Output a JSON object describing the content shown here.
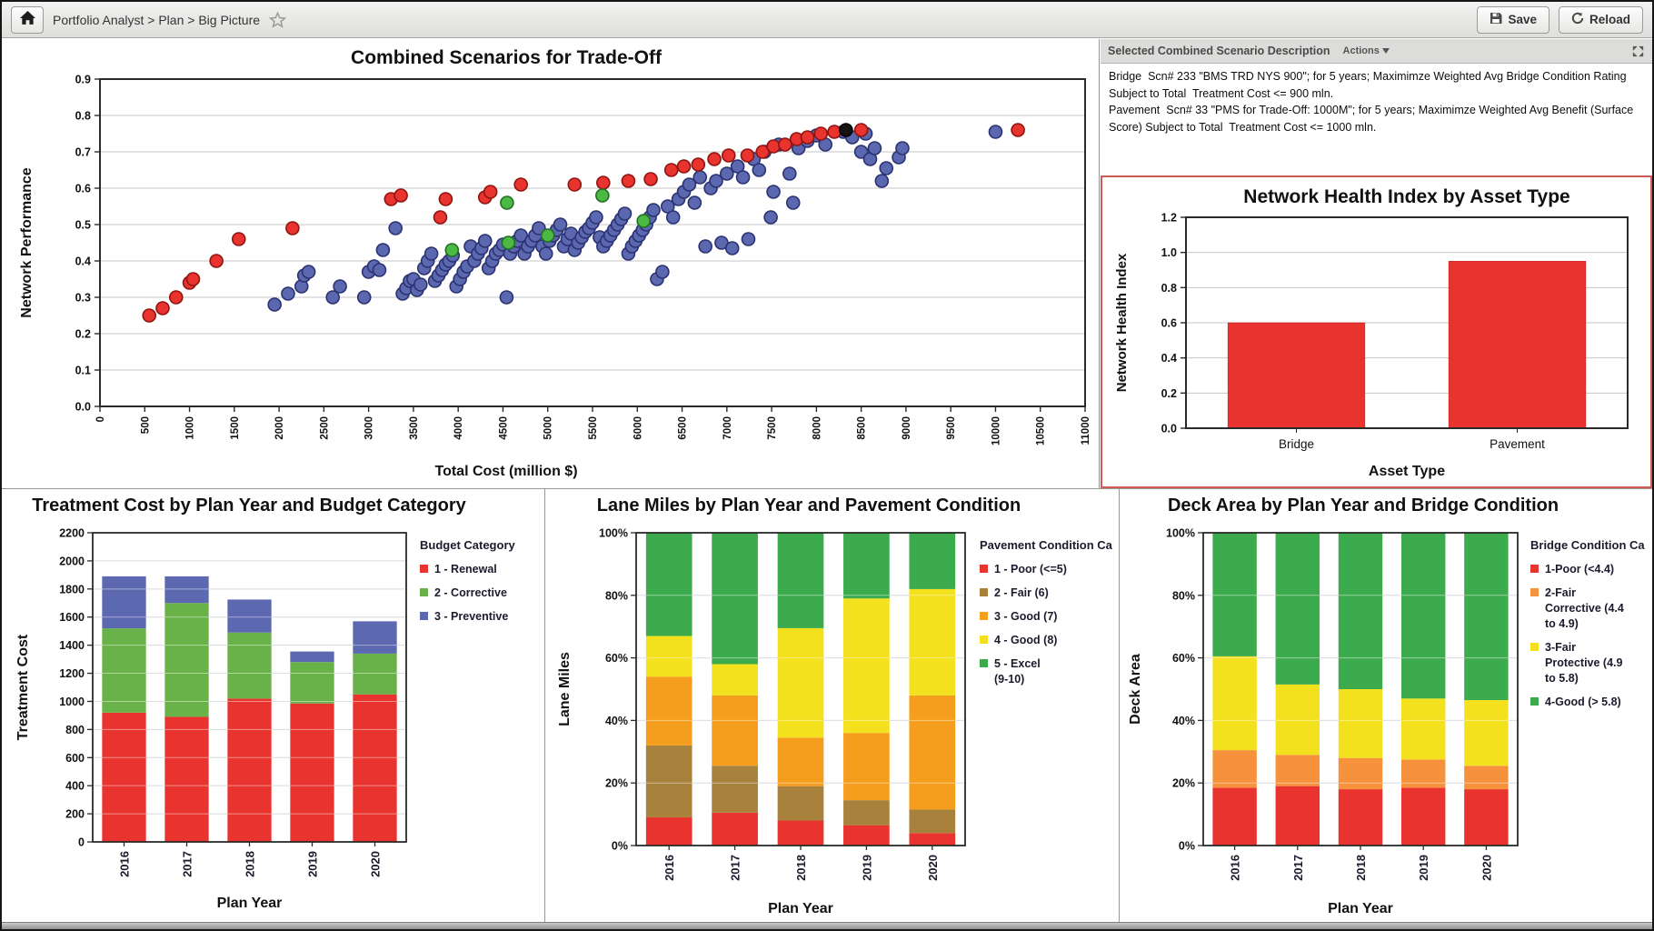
{
  "toolbar": {
    "breadcrumb": "Portfolio Analyst > Plan > Big Picture",
    "save_label": "Save",
    "reload_label": "Reload"
  },
  "description_panel": {
    "title": "Selected Combined Scenario Description",
    "actions_label": "Actions",
    "actions_caret": "▼",
    "lines": [
      "Bridge  Scn# 233 \"BMS TRD NYS 900\"; for 5 years; Maximimze Weighted Avg Bridge Condition Rating Subject to Total  Treatment Cost <= 900 mln.",
      "Pavement  Scn# 33 \"PMS for Trade-Off: 1000M\"; for 5 years; Maximimze Weighted Avg Benefit (Surface Score) Subject to Total  Treatment Cost <= 1000 mln."
    ]
  },
  "chart_data": [
    {
      "type": "scatter",
      "title": "Combined Scenarios for Trade-Off",
      "xlabel": "Total Cost (million $)",
      "ylabel": "Network Performance",
      "xlim": [
        0,
        11000
      ],
      "xstep": 500,
      "ylim": [
        0,
        0.9
      ],
      "ystep": 0.1,
      "grid": "horizontal",
      "series": [
        {
          "name": "combined-scenarios",
          "color": "#5b68b0",
          "stroke": "#2b3272",
          "points": [
            [
              1950,
              0.28
            ],
            [
              2100,
              0.31
            ],
            [
              2250,
              0.33
            ],
            [
              2280,
              0.36
            ],
            [
              2330,
              0.37
            ],
            [
              2600,
              0.3
            ],
            [
              2680,
              0.33
            ],
            [
              2950,
              0.3
            ],
            [
              3000,
              0.37
            ],
            [
              3060,
              0.385
            ],
            [
              3120,
              0.375
            ],
            [
              3160,
              0.43
            ],
            [
              3300,
              0.49
            ],
            [
              3380,
              0.31
            ],
            [
              3420,
              0.325
            ],
            [
              3460,
              0.345
            ],
            [
              3500,
              0.35
            ],
            [
              3540,
              0.32
            ],
            [
              3580,
              0.335
            ],
            [
              3620,
              0.38
            ],
            [
              3660,
              0.4
            ],
            [
              3700,
              0.42
            ],
            [
              3740,
              0.345
            ],
            [
              3780,
              0.36
            ],
            [
              3820,
              0.375
            ],
            [
              3860,
              0.39
            ],
            [
              3900,
              0.4
            ],
            [
              3940,
              0.415
            ],
            [
              3980,
              0.33
            ],
            [
              4020,
              0.35
            ],
            [
              4060,
              0.37
            ],
            [
              4100,
              0.385
            ],
            [
              4140,
              0.44
            ],
            [
              4180,
              0.4
            ],
            [
              4220,
              0.42
            ],
            [
              4260,
              0.435
            ],
            [
              4300,
              0.455
            ],
            [
              4340,
              0.38
            ],
            [
              4380,
              0.4
            ],
            [
              4420,
              0.42
            ],
            [
              4460,
              0.43
            ],
            [
              4500,
              0.445
            ],
            [
              4540,
              0.3
            ],
            [
              4580,
              0.42
            ],
            [
              4620,
              0.44
            ],
            [
              4660,
              0.455
            ],
            [
              4700,
              0.47
            ],
            [
              4740,
              0.42
            ],
            [
              4780,
              0.44
            ],
            [
              4820,
              0.455
            ],
            [
              4860,
              0.47
            ],
            [
              4900,
              0.49
            ],
            [
              4940,
              0.44
            ],
            [
              4980,
              0.42
            ],
            [
              5020,
              0.455
            ],
            [
              5060,
              0.47
            ],
            [
              5100,
              0.485
            ],
            [
              5140,
              0.5
            ],
            [
              5180,
              0.44
            ],
            [
              5220,
              0.46
            ],
            [
              5260,
              0.475
            ],
            [
              5300,
              0.43
            ],
            [
              5340,
              0.45
            ],
            [
              5380,
              0.465
            ],
            [
              5420,
              0.48
            ],
            [
              5460,
              0.49
            ],
            [
              5500,
              0.505
            ],
            [
              5540,
              0.52
            ],
            [
              5580,
              0.465
            ],
            [
              5620,
              0.44
            ],
            [
              5660,
              0.455
            ],
            [
              5700,
              0.47
            ],
            [
              5740,
              0.485
            ],
            [
              5780,
              0.5
            ],
            [
              5820,
              0.515
            ],
            [
              5860,
              0.53
            ],
            [
              5900,
              0.42
            ],
            [
              5940,
              0.44
            ],
            [
              5980,
              0.455
            ],
            [
              6020,
              0.47
            ],
            [
              6060,
              0.485
            ],
            [
              6100,
              0.5
            ],
            [
              6140,
              0.52
            ],
            [
              6180,
              0.54
            ],
            [
              6220,
              0.35
            ],
            [
              6280,
              0.37
            ],
            [
              6340,
              0.55
            ],
            [
              6400,
              0.52
            ],
            [
              6460,
              0.57
            ],
            [
              6520,
              0.59
            ],
            [
              6580,
              0.61
            ],
            [
              6640,
              0.56
            ],
            [
              6700,
              0.63
            ],
            [
              6760,
              0.44
            ],
            [
              6820,
              0.6
            ],
            [
              6880,
              0.62
            ],
            [
              6940,
              0.45
            ],
            [
              7000,
              0.64
            ],
            [
              7060,
              0.435
            ],
            [
              7120,
              0.66
            ],
            [
              7180,
              0.63
            ],
            [
              7240,
              0.46
            ],
            [
              7300,
              0.68
            ],
            [
              7360,
              0.65
            ],
            [
              7420,
              0.7
            ],
            [
              7490,
              0.52
            ],
            [
              7520,
              0.59
            ],
            [
              7580,
              0.72
            ],
            [
              7700,
              0.64
            ],
            [
              7740,
              0.56
            ],
            [
              7800,
              0.71
            ],
            [
              7900,
              0.73
            ],
            [
              8000,
              0.745
            ],
            [
              8100,
              0.72
            ],
            [
              8300,
              0.755
            ],
            [
              8400,
              0.74
            ],
            [
              8500,
              0.7
            ],
            [
              8550,
              0.75
            ],
            [
              8600,
              0.68
            ],
            [
              8650,
              0.71
            ],
            [
              8730,
              0.62
            ],
            [
              8780,
              0.655
            ],
            [
              8920,
              0.685
            ],
            [
              8960,
              0.71
            ],
            [
              10000,
              0.755
            ]
          ]
        },
        {
          "name": "pareto-frontier",
          "color": "#e8332e",
          "stroke": "#8f1510",
          "points": [
            [
              550,
              0.25
            ],
            [
              700,
              0.27
            ],
            [
              850,
              0.3
            ],
            [
              1000,
              0.34
            ],
            [
              1040,
              0.35
            ],
            [
              1300,
              0.4
            ],
            [
              1550,
              0.46
            ],
            [
              2150,
              0.49
            ],
            [
              3250,
              0.57
            ],
            [
              3360,
              0.58
            ],
            [
              3800,
              0.52
            ],
            [
              3860,
              0.57
            ],
            [
              4300,
              0.575
            ],
            [
              4360,
              0.59
            ],
            [
              4700,
              0.61
            ],
            [
              5300,
              0.61
            ],
            [
              5620,
              0.615
            ],
            [
              5900,
              0.62
            ],
            [
              6150,
              0.625
            ],
            [
              6380,
              0.65
            ],
            [
              6520,
              0.66
            ],
            [
              6680,
              0.665
            ],
            [
              6860,
              0.68
            ],
            [
              7020,
              0.69
            ],
            [
              7230,
              0.69
            ],
            [
              7400,
              0.7
            ],
            [
              7520,
              0.715
            ],
            [
              7650,
              0.72
            ],
            [
              7780,
              0.735
            ],
            [
              7900,
              0.74
            ],
            [
              8050,
              0.75
            ],
            [
              8200,
              0.755
            ],
            [
              8500,
              0.76
            ],
            [
              10250,
              0.76
            ]
          ]
        },
        {
          "name": "highlighted-scenarios",
          "color": "#4cb944",
          "stroke": "#20701f",
          "points": [
            [
              3930,
              0.43
            ],
            [
              4545,
              0.56
            ],
            [
              4560,
              0.45
            ],
            [
              5000,
              0.47
            ],
            [
              5610,
              0.58
            ],
            [
              6070,
              0.51
            ]
          ]
        },
        {
          "name": "selected-scenario",
          "color": "#141414",
          "stroke": "#000000",
          "points": [
            [
              8330,
              0.76
            ]
          ]
        }
      ]
    },
    {
      "type": "bar",
      "title": "Network Health Index by Asset Type",
      "xlabel": "Asset Type",
      "ylabel": "Network Health Index",
      "categories": [
        "Bridge",
        "Pavement"
      ],
      "values": [
        0.6,
        0.95
      ],
      "bar_color": "#e8332e",
      "ylim": [
        0,
        1.2
      ],
      "ystep": 0.2
    },
    {
      "type": "stacked_bar",
      "title": "Treatment Cost by Plan Year and Budget Category",
      "xlabel": "Plan Year",
      "ylabel": "Treatment Cost",
      "categories": [
        "2016",
        "2017",
        "2018",
        "2019",
        "2020"
      ],
      "ylim": [
        0,
        2200
      ],
      "ystep": 200,
      "legend_title": "Budget Category",
      "series": [
        {
          "name": "1 - Renewal",
          "label_lines": [
            "1 - Renewal"
          ],
          "color": "#e8332e",
          "values": [
            920,
            890,
            1020,
            985,
            1050
          ]
        },
        {
          "name": "2 - Corrective",
          "label_lines": [
            "2 - Corrective"
          ],
          "color": "#69b24a",
          "values": [
            600,
            810,
            470,
            295,
            290
          ]
        },
        {
          "name": "3 - Preventive",
          "label_lines": [
            "3 - Preventive"
          ],
          "color": "#5c68af",
          "values": [
            370,
            190,
            235,
            75,
            230
          ]
        }
      ]
    },
    {
      "type": "stacked_bar_percent",
      "title": "Lane Miles by Plan Year and Pavement Condition",
      "xlabel": "Plan Year",
      "ylabel": "Lane Miles",
      "categories": [
        "2016",
        "2017",
        "2018",
        "2019",
        "2020"
      ],
      "ylim": [
        0,
        100
      ],
      "ystep": 20,
      "legend_title": "Pavement Condition Ca",
      "series": [
        {
          "name": "1 - Poor (<=5)",
          "label_lines": [
            "1 - Poor (<=5)"
          ],
          "color": "#e8332e",
          "values": [
            9,
            10.5,
            8,
            6.5,
            4
          ]
        },
        {
          "name": "2 - Fair (6)",
          "label_lines": [
            "2 - Fair (6)"
          ],
          "color": "#a8813c",
          "values": [
            23,
            15,
            11,
            8,
            7.5
          ]
        },
        {
          "name": "3 - Good (7)",
          "label_lines": [
            "3 - Good (7)"
          ],
          "color": "#f59d1d",
          "values": [
            22,
            22.5,
            15.5,
            21.5,
            36.5
          ]
        },
        {
          "name": "4 - Good (8)",
          "label_lines": [
            "4 - Good (8)"
          ],
          "color": "#f3e11d",
          "values": [
            13,
            10,
            35,
            43,
            34
          ]
        },
        {
          "name": "5 - Excel (9-10)",
          "label_lines": [
            "5 - Excel",
            "(9-10)"
          ],
          "color": "#3cab4e",
          "values": [
            33,
            42,
            30.5,
            21,
            18
          ]
        }
      ]
    },
    {
      "type": "stacked_bar_percent",
      "title": "Deck Area by Plan Year and Bridge Condition",
      "xlabel": "Plan Year",
      "ylabel": "Deck Area",
      "categories": [
        "2016",
        "2017",
        "2018",
        "2019",
        "2020"
      ],
      "ylim": [
        0,
        100
      ],
      "ystep": 20,
      "legend_title": "Bridge Condition Ca",
      "series": [
        {
          "name": "1-Poor (<4.4)",
          "label_lines": [
            "1-Poor (<4.4)"
          ],
          "color": "#e8332e",
          "values": [
            18.5,
            19,
            18,
            18.5,
            18
          ]
        },
        {
          "name": "2-Fair Corrective (4.4 to 4.9)",
          "label_lines": [
            "2-Fair",
            "Corrective (4.4",
            "to 4.9)"
          ],
          "color": "#f6913c",
          "values": [
            12,
            10,
            10,
            9,
            7.5
          ]
        },
        {
          "name": "3-Fair Protective (4.9 to 5.8)",
          "label_lines": [
            "3-Fair",
            "Protective (4.9",
            "to 5.8)"
          ],
          "color": "#f3e11d",
          "values": [
            30,
            22.5,
            22,
            19.5,
            21
          ]
        },
        {
          "name": "4-Good (> 5.8)",
          "label_lines": [
            "4-Good (> 5.8)"
          ],
          "color": "#3cab4e",
          "values": [
            39.5,
            48.5,
            50,
            53,
            53.5
          ]
        }
      ]
    }
  ]
}
